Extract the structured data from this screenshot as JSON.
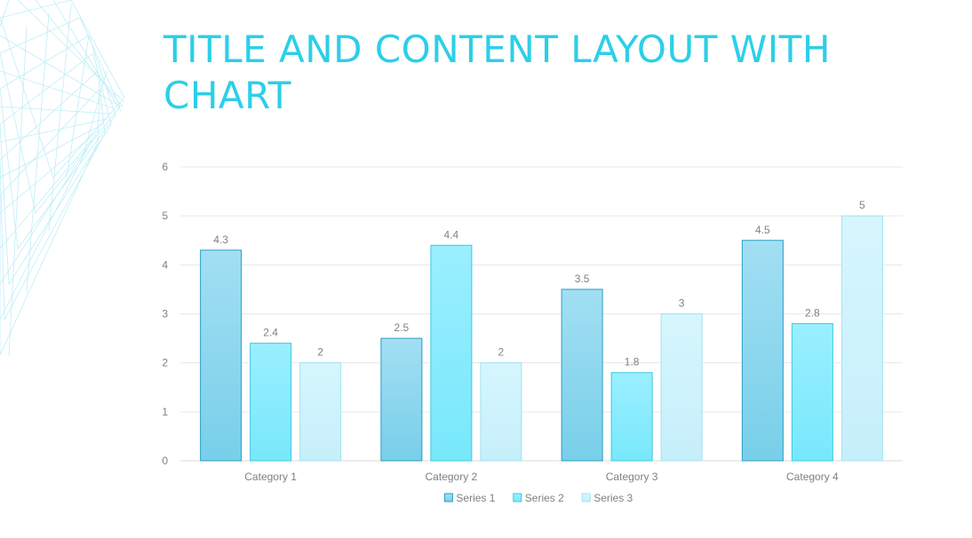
{
  "slide": {
    "title": "TITLE AND CONTENT LAYOUT WITH CHART"
  },
  "colors": {
    "title": "#2ccfe8",
    "gridline": "#e8e8e8",
    "axis_text": "#808080",
    "series_fill_top": [
      "#a2dff3",
      "#9aefff",
      "#d6f6fd"
    ],
    "series_fill_bottom": [
      "#78cfe9",
      "#78e8fb",
      "#c6effb"
    ],
    "series_stroke": [
      "#2a9ec4",
      "#3dc9df",
      "#a2e2f2"
    ]
  },
  "chart_data": {
    "type": "bar",
    "title": "",
    "xlabel": "",
    "ylabel": "",
    "ylim": [
      0,
      6
    ],
    "yticks": [
      0,
      1,
      2,
      3,
      4,
      5,
      6
    ],
    "grid": true,
    "legend_position": "bottom",
    "categories": [
      "Category 1",
      "Category 2",
      "Category 3",
      "Category 4"
    ],
    "series": [
      {
        "name": "Series 1",
        "values": [
          4.3,
          2.5,
          3.5,
          4.5
        ]
      },
      {
        "name": "Series 2",
        "values": [
          2.4,
          4.4,
          1.8,
          2.8
        ]
      },
      {
        "name": "Series 3",
        "values": [
          2,
          2,
          3,
          5
        ]
      }
    ]
  }
}
